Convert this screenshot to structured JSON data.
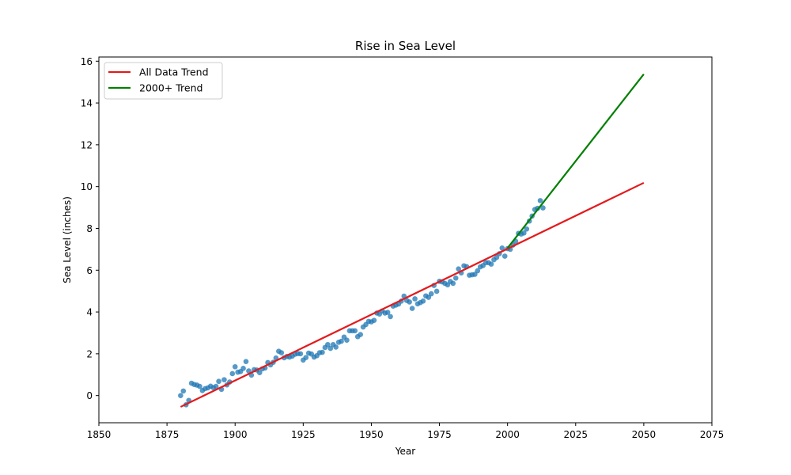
{
  "chart_data": {
    "type": "scatter",
    "title": "Rise in Sea Level",
    "xlabel": "Year",
    "ylabel": "Sea Level (inches)",
    "xlim": [
      1850,
      2075
    ],
    "ylim": [
      -1.3,
      16.2
    ],
    "xticks": [
      1850,
      1875,
      1900,
      1925,
      1950,
      1975,
      2000,
      2025,
      2050,
      2075
    ],
    "yticks": [
      0,
      2,
      4,
      6,
      8,
      10,
      12,
      14,
      16
    ],
    "grid": false,
    "legend_position": "top-left",
    "scatter": {
      "color": "#1f77b4",
      "points": [
        [
          1880,
          0.0
        ],
        [
          1881,
          0.22
        ],
        [
          1882,
          -0.44
        ],
        [
          1883,
          -0.23
        ],
        [
          1884,
          0.59
        ],
        [
          1885,
          0.53
        ],
        [
          1886,
          0.5
        ],
        [
          1887,
          0.44
        ],
        [
          1888,
          0.24
        ],
        [
          1889,
          0.33
        ],
        [
          1890,
          0.37
        ],
        [
          1891,
          0.45
        ],
        [
          1892,
          0.38
        ],
        [
          1893,
          0.44
        ],
        [
          1894,
          0.68
        ],
        [
          1895,
          0.3
        ],
        [
          1896,
          0.76
        ],
        [
          1897,
          0.51
        ],
        [
          1898,
          0.65
        ],
        [
          1899,
          1.05
        ],
        [
          1900,
          1.38
        ],
        [
          1901,
          1.12
        ],
        [
          1902,
          1.15
        ],
        [
          1903,
          1.3
        ],
        [
          1904,
          1.63
        ],
        [
          1905,
          1.18
        ],
        [
          1906,
          0.98
        ],
        [
          1907,
          1.24
        ],
        [
          1908,
          1.22
        ],
        [
          1909,
          1.1
        ],
        [
          1910,
          1.28
        ],
        [
          1911,
          1.32
        ],
        [
          1912,
          1.58
        ],
        [
          1913,
          1.47
        ],
        [
          1914,
          1.59
        ],
        [
          1915,
          1.8
        ],
        [
          1916,
          2.12
        ],
        [
          1917,
          2.05
        ],
        [
          1918,
          1.81
        ],
        [
          1919,
          1.87
        ],
        [
          1920,
          1.84
        ],
        [
          1921,
          1.89
        ],
        [
          1922,
          1.98
        ],
        [
          1923,
          2.01
        ],
        [
          1924,
          2.0
        ],
        [
          1925,
          1.7
        ],
        [
          1926,
          1.82
        ],
        [
          1927,
          2.03
        ],
        [
          1928,
          1.99
        ],
        [
          1929,
          1.84
        ],
        [
          1930,
          1.91
        ],
        [
          1931,
          2.05
        ],
        [
          1932,
          2.07
        ],
        [
          1933,
          2.3
        ],
        [
          1934,
          2.44
        ],
        [
          1935,
          2.26
        ],
        [
          1936,
          2.44
        ],
        [
          1937,
          2.32
        ],
        [
          1938,
          2.55
        ],
        [
          1939,
          2.6
        ],
        [
          1940,
          2.8
        ],
        [
          1941,
          2.65
        ],
        [
          1942,
          3.1
        ],
        [
          1943,
          3.1
        ],
        [
          1944,
          3.1
        ],
        [
          1945,
          2.82
        ],
        [
          1946,
          2.92
        ],
        [
          1947,
          3.28
        ],
        [
          1948,
          3.4
        ],
        [
          1949,
          3.55
        ],
        [
          1950,
          3.53
        ],
        [
          1951,
          3.6
        ],
        [
          1952,
          3.95
        ],
        [
          1953,
          3.9
        ],
        [
          1954,
          4.05
        ],
        [
          1955,
          3.95
        ],
        [
          1956,
          3.98
        ],
        [
          1957,
          3.78
        ],
        [
          1958,
          4.28
        ],
        [
          1959,
          4.33
        ],
        [
          1960,
          4.38
        ],
        [
          1961,
          4.52
        ],
        [
          1962,
          4.76
        ],
        [
          1963,
          4.55
        ],
        [
          1964,
          4.48
        ],
        [
          1965,
          4.17
        ],
        [
          1966,
          4.63
        ],
        [
          1967,
          4.39
        ],
        [
          1968,
          4.45
        ],
        [
          1969,
          4.52
        ],
        [
          1970,
          4.77
        ],
        [
          1971,
          4.7
        ],
        [
          1972,
          4.87
        ],
        [
          1973,
          5.27
        ],
        [
          1974,
          4.99
        ],
        [
          1975,
          5.47
        ],
        [
          1976,
          5.44
        ],
        [
          1977,
          5.37
        ],
        [
          1978,
          5.3
        ],
        [
          1979,
          5.46
        ],
        [
          1980,
          5.37
        ],
        [
          1981,
          5.62
        ],
        [
          1982,
          6.06
        ],
        [
          1983,
          5.87
        ],
        [
          1984,
          6.21
        ],
        [
          1985,
          6.17
        ],
        [
          1986,
          5.76
        ],
        [
          1987,
          5.78
        ],
        [
          1988,
          5.8
        ],
        [
          1989,
          5.97
        ],
        [
          1990,
          6.16
        ],
        [
          1991,
          6.22
        ],
        [
          1992,
          6.36
        ],
        [
          1993,
          6.36
        ],
        [
          1994,
          6.29
        ],
        [
          1995,
          6.5
        ],
        [
          1996,
          6.61
        ],
        [
          1997,
          6.79
        ],
        [
          1998,
          7.06
        ],
        [
          1999,
          6.67
        ],
        [
          2000,
          7.03
        ],
        [
          2001,
          7.0
        ],
        [
          2002,
          7.2
        ],
        [
          2003,
          7.38
        ],
        [
          2004,
          7.76
        ],
        [
          2005,
          7.73
        ],
        [
          2006,
          7.78
        ],
        [
          2007,
          7.97
        ],
        [
          2008,
          8.35
        ],
        [
          2009,
          8.59
        ],
        [
          2010,
          8.9
        ],
        [
          2011,
          8.96
        ],
        [
          2012,
          9.33
        ],
        [
          2013,
          8.98
        ]
      ]
    },
    "series": [
      {
        "name": "All Data Trend",
        "type": "line",
        "color": "#e41a1c",
        "x": [
          1880,
          2050
        ],
        "y": [
          -0.54,
          10.18
        ]
      },
      {
        "name": "2000+ Trend",
        "type": "line",
        "color": "#008000",
        "x": [
          2000,
          2050
        ],
        "y": [
          7.06,
          15.38
        ]
      }
    ]
  }
}
